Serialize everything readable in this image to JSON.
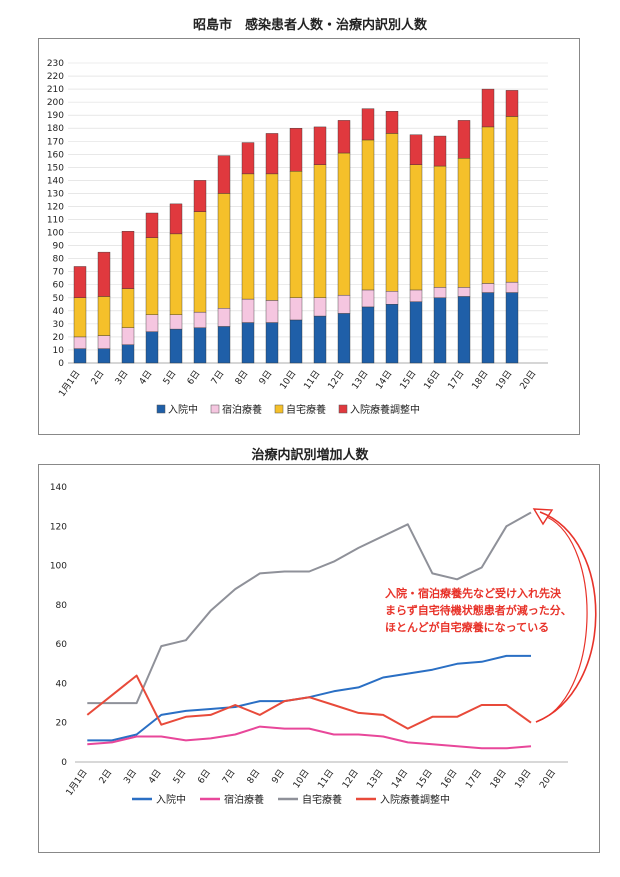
{
  "page": {
    "chart1_title": "昭島市　感染患者人数・治療内訳別人数",
    "chart2_title": "治療内訳別増加人数",
    "annotation_lines": [
      "入院・宿泊療養先など受け入れ先決",
      "まらず自宅待機状態患者が減った分、",
      "ほとんどが自宅療養になっている"
    ]
  },
  "chart_data": [
    {
      "type": "bar",
      "stacked": true,
      "title": "昭島市　感染患者人数・治療内訳別人数",
      "categories": [
        "1月1日",
        "2日",
        "3日",
        "4日",
        "5日",
        "6日",
        "7日",
        "8日",
        "9日",
        "10日",
        "11日",
        "12日",
        "13日",
        "14日",
        "15日",
        "16日",
        "17日",
        "18日",
        "19日",
        "20日"
      ],
      "ylim": [
        0,
        230
      ],
      "yticks": [
        0,
        10,
        20,
        30,
        40,
        50,
        60,
        70,
        80,
        90,
        100,
        110,
        120,
        130,
        140,
        150,
        160,
        170,
        180,
        190,
        200,
        210,
        220,
        230
      ],
      "grid": true,
      "legend_position": "bottom",
      "series": [
        {
          "name": "入院中",
          "color": "#1f5fa8",
          "values": [
            11,
            11,
            14,
            24,
            26,
            27,
            28,
            31,
            31,
            33,
            36,
            38,
            43,
            45,
            47,
            50,
            51,
            54,
            54,
            null
          ]
        },
        {
          "name": "宿泊療養",
          "color": "#f5c6e0",
          "values": [
            9,
            10,
            13,
            13,
            11,
            12,
            14,
            18,
            17,
            17,
            14,
            14,
            13,
            10,
            9,
            8,
            7,
            7,
            8,
            null
          ]
        },
        {
          "name": "自宅療養",
          "color": "#f5c02a",
          "values": [
            30,
            30,
            30,
            59,
            62,
            77,
            88,
            96,
            97,
            97,
            102,
            109,
            115,
            121,
            96,
            93,
            99,
            120,
            127,
            null
          ]
        },
        {
          "name": "入院療養調整中",
          "color": "#e0393e",
          "values": [
            24,
            34,
            44,
            19,
            23,
            24,
            29,
            24,
            31,
            33,
            29,
            25,
            24,
            17,
            23,
            23,
            29,
            29,
            20,
            null
          ]
        }
      ]
    },
    {
      "type": "line",
      "title": "治療内訳別増加人数",
      "categories": [
        "1月1日",
        "2日",
        "3日",
        "4日",
        "5日",
        "6日",
        "7日",
        "8日",
        "9日",
        "10日",
        "11日",
        "12日",
        "13日",
        "14日",
        "15日",
        "16日",
        "17日",
        "18日",
        "19日",
        "20日"
      ],
      "ylim": [
        0,
        140
      ],
      "yticks": [
        0,
        20,
        40,
        60,
        80,
        100,
        120,
        140
      ],
      "grid": false,
      "legend_position": "bottom",
      "series": [
        {
          "name": "入院中",
          "color": "#2a6fc4",
          "values": [
            11,
            11,
            14,
            24,
            26,
            27,
            28,
            31,
            31,
            33,
            36,
            38,
            43,
            45,
            47,
            50,
            51,
            54,
            54,
            null
          ]
        },
        {
          "name": "宿泊療養",
          "color": "#e8479a",
          "values": [
            9,
            10,
            13,
            13,
            11,
            12,
            14,
            18,
            17,
            17,
            14,
            14,
            13,
            10,
            9,
            8,
            7,
            7,
            8,
            null
          ]
        },
        {
          "name": "自宅療養",
          "color": "#8f9199",
          "values": [
            30,
            30,
            30,
            59,
            62,
            77,
            88,
            96,
            97,
            97,
            102,
            109,
            115,
            121,
            96,
            93,
            99,
            120,
            127,
            null
          ]
        },
        {
          "name": "入院療養調整中",
          "color": "#e84a3a",
          "values": [
            24,
            34,
            44,
            19,
            23,
            24,
            29,
            24,
            31,
            33,
            29,
            25,
            24,
            17,
            23,
            23,
            29,
            29,
            20,
            null
          ]
        }
      ]
    }
  ]
}
